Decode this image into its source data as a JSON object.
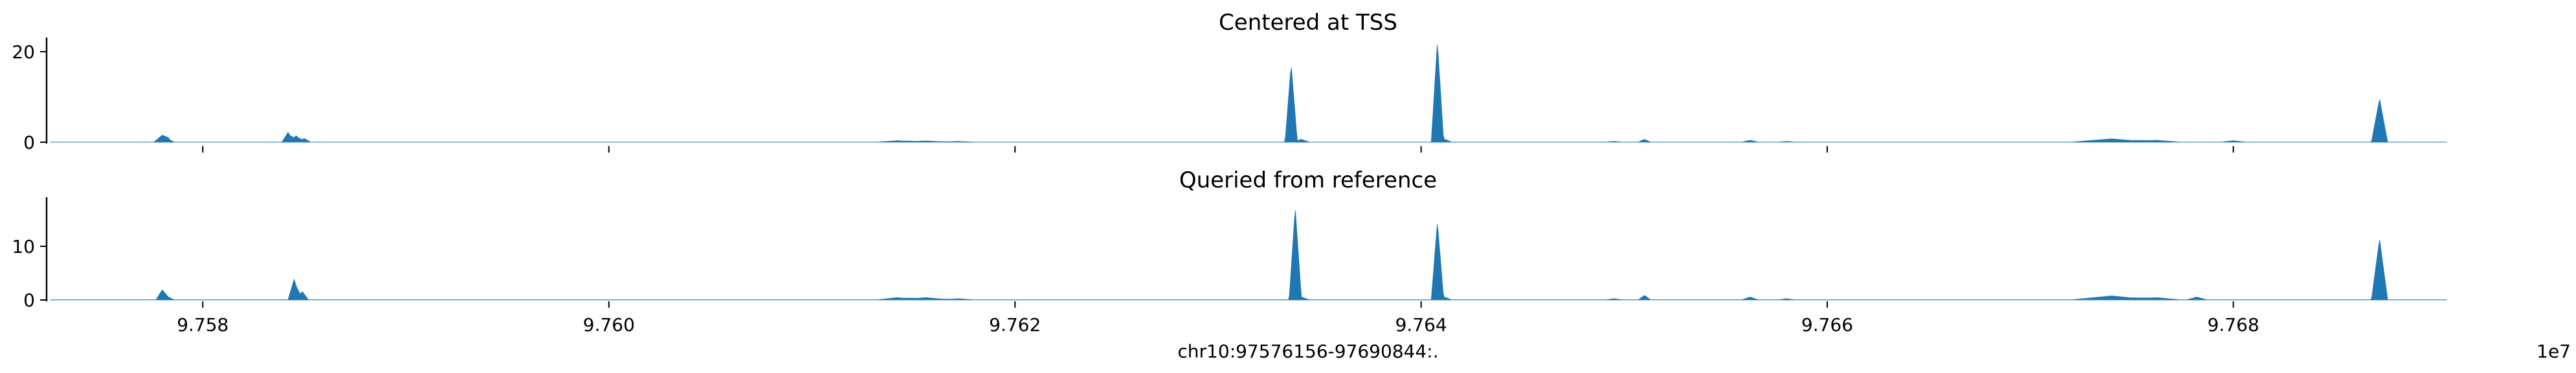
{
  "figure": {
    "xlabel": "chr10:97576156-97690844:.",
    "x_offset_label": "1e7"
  },
  "chart_data": [
    {
      "type": "area",
      "title": "Centered at TSS",
      "ylim": [
        0,
        22
      ],
      "yticks": [
        0,
        20
      ],
      "xlim": [
        9.75725,
        9.76905
      ],
      "xticks": [
        9.758,
        9.76,
        9.762,
        9.764,
        9.766,
        9.768
      ],
      "xticklabels_shown": false,
      "color": "#1f77b4",
      "peaks": [
        {
          "x": 9.7578,
          "height": 1.5,
          "width": 4e-05
        },
        {
          "x": 9.75783,
          "height": 0.6,
          "width": 3e-05
        },
        {
          "x": 9.75842,
          "height": 2.1,
          "width": 3e-05
        },
        {
          "x": 9.75846,
          "height": 1.4,
          "width": 3e-05
        },
        {
          "x": 9.7585,
          "height": 0.8,
          "width": 3e-05
        },
        {
          "x": 9.76142,
          "height": 0.3,
          "width": 0.0001
        },
        {
          "x": 9.76156,
          "height": 0.25,
          "width": 0.00012
        },
        {
          "x": 9.76172,
          "height": 0.15,
          "width": 8e-05
        },
        {
          "x": 9.76336,
          "height": 16.8,
          "width": 3e-05
        },
        {
          "x": 9.76341,
          "height": 0.6,
          "width": 4e-05
        },
        {
          "x": 9.76408,
          "height": 21.0,
          "width": 3e-05
        },
        {
          "x": 9.7641,
          "height": 0.9,
          "width": 5e-05
        },
        {
          "x": 9.76495,
          "height": 0.15,
          "width": 4e-05
        },
        {
          "x": 9.7651,
          "height": 0.6,
          "width": 3e-05
        },
        {
          "x": 9.76562,
          "height": 0.4,
          "width": 4e-05
        },
        {
          "x": 9.7658,
          "height": 0.15,
          "width": 4e-05
        },
        {
          "x": 9.7674,
          "height": 0.7,
          "width": 0.0002
        },
        {
          "x": 9.76762,
          "height": 0.4,
          "width": 0.00012
        },
        {
          "x": 9.768,
          "height": 0.3,
          "width": 6e-05
        },
        {
          "x": 9.76872,
          "height": 9.3,
          "width": 4e-05
        }
      ]
    },
    {
      "type": "area",
      "title": "Queried from reference",
      "ylim": [
        0,
        18
      ],
      "yticks": [
        0,
        10
      ],
      "xlim": [
        9.75725,
        9.76905
      ],
      "xticks": [
        9.758,
        9.76,
        9.762,
        9.764,
        9.766,
        9.768
      ],
      "xticklabels": [
        "9.758",
        "9.760",
        "9.762",
        "9.764",
        "9.766",
        "9.768"
      ],
      "xticklabels_shown": true,
      "color": "#1f77b4",
      "peaks": [
        {
          "x": 9.7578,
          "height": 1.8,
          "width": 3e-05
        },
        {
          "x": 9.75783,
          "height": 0.5,
          "width": 3e-05
        },
        {
          "x": 9.75845,
          "height": 3.7,
          "width": 3e-05
        },
        {
          "x": 9.75849,
          "height": 1.5,
          "width": 3e-05
        },
        {
          "x": 9.76142,
          "height": 0.4,
          "width": 0.0001
        },
        {
          "x": 9.76156,
          "height": 0.4,
          "width": 0.00012
        },
        {
          "x": 9.76172,
          "height": 0.2,
          "width": 8e-05
        },
        {
          "x": 9.76338,
          "height": 16.5,
          "width": 3e-05
        },
        {
          "x": 9.76341,
          "height": 0.5,
          "width": 4e-05
        },
        {
          "x": 9.76408,
          "height": 13.5,
          "width": 3e-05
        },
        {
          "x": 9.7641,
          "height": 0.7,
          "width": 5e-05
        },
        {
          "x": 9.76495,
          "height": 0.2,
          "width": 4e-05
        },
        {
          "x": 9.7651,
          "height": 0.8,
          "width": 3e-05
        },
        {
          "x": 9.76562,
          "height": 0.5,
          "width": 4e-05
        },
        {
          "x": 9.7658,
          "height": 0.2,
          "width": 4e-05
        },
        {
          "x": 9.7674,
          "height": 0.7,
          "width": 0.0002
        },
        {
          "x": 9.76762,
          "height": 0.4,
          "width": 0.00012
        },
        {
          "x": 9.76782,
          "height": 0.5,
          "width": 5e-05
        },
        {
          "x": 9.76872,
          "height": 10.9,
          "width": 4e-05
        }
      ]
    }
  ]
}
